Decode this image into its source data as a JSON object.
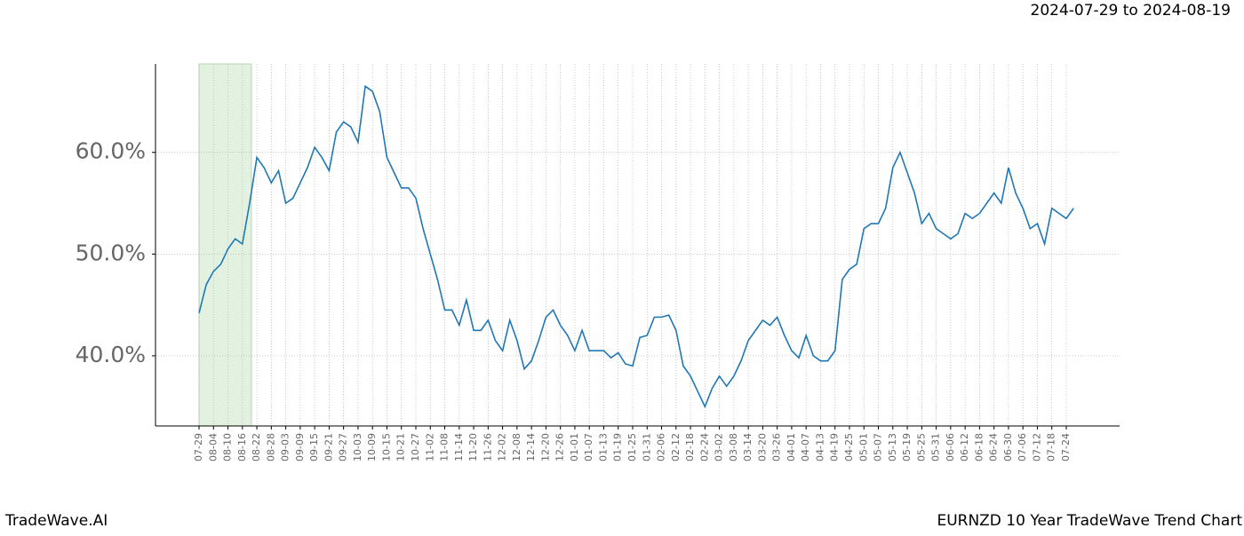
{
  "chart_data": {
    "type": "line",
    "header": "2024-07-29 to 2024-08-19",
    "brand": "TradeWave.AI",
    "title": "EURNZD 10 Year TradeWave Trend Chart",
    "categories": [
      "07-29",
      null,
      "08-04",
      null,
      "08-10",
      null,
      "08-16",
      null,
      "08-22",
      null,
      "08-28",
      null,
      "09-03",
      null,
      "09-09",
      null,
      "09-15",
      null,
      "09-21",
      null,
      "09-27",
      null,
      "10-03",
      null,
      "10-09",
      null,
      "10-15",
      null,
      "10-21",
      null,
      "10-27",
      null,
      "11-02",
      null,
      "11-08",
      null,
      "11-14",
      null,
      "11-20",
      null,
      "11-26",
      null,
      "12-02",
      null,
      "12-08",
      null,
      "12-14",
      null,
      "12-20",
      null,
      "12-26",
      null,
      "01-01",
      null,
      "01-07",
      null,
      "01-13",
      null,
      "01-19",
      null,
      "01-25",
      null,
      "01-31",
      null,
      "02-06",
      null,
      "02-12",
      null,
      "02-18",
      null,
      "02-24",
      null,
      "03-02",
      null,
      "03-08",
      null,
      "03-14",
      null,
      "03-20",
      null,
      "03-26",
      null,
      "04-01",
      null,
      "04-07",
      null,
      "04-13",
      null,
      "04-19",
      null,
      "04-25",
      null,
      "05-01",
      null,
      "05-07",
      null,
      "05-13",
      null,
      "05-19",
      null,
      "05-25",
      null,
      "05-31",
      null,
      "06-06",
      null,
      "06-12",
      null,
      "06-18",
      null,
      "06-24",
      null,
      "06-30",
      null,
      "07-06",
      null,
      "07-12",
      null,
      "07-18",
      null,
      "07-24",
      null
    ],
    "series": [
      {
        "color": "#1f77b4",
        "values": [
          44.2,
          47,
          48.3,
          49,
          50.5,
          51.5,
          51,
          55,
          59.5,
          58.5,
          57,
          58.2,
          55,
          55.5,
          57,
          58.5,
          60.5,
          59.5,
          58.2,
          62,
          63,
          62.5,
          61,
          66.5,
          66,
          64,
          59.5,
          58,
          56.5,
          56.5,
          55.5,
          52.5,
          50,
          47.5,
          44.5,
          44.5,
          43,
          45.5,
          42.5,
          42.5,
          43.5,
          41.5,
          40.5,
          43.5,
          41.5,
          38.7,
          39.5,
          41.5,
          43.8,
          44.5,
          43,
          42,
          40.5,
          42.5,
          40.5,
          40.5,
          40.5,
          39.8,
          40.3,
          39.2,
          39,
          41.8,
          42,
          43.8,
          43.8,
          44,
          42.5,
          39,
          38,
          36.5,
          35,
          36.8,
          38,
          37,
          38,
          39.5,
          41.5,
          42.5,
          43.5,
          43,
          43.8,
          42,
          40.5,
          39.8,
          42,
          40,
          39.5,
          39.5,
          40.5,
          47.5,
          48.5,
          49,
          52.5,
          53,
          53,
          54.5,
          58.5,
          60,
          58,
          56,
          53,
          54,
          52.5,
          52,
          51.5,
          52,
          54,
          53.5,
          54,
          55,
          56,
          55,
          58.5,
          56,
          54.5,
          52.5,
          53,
          51,
          54.5,
          54,
          53.5,
          54.5
        ]
      }
    ],
    "ylim": [
      33.1,
      68.7
    ],
    "yticks": [
      {
        "value": 40,
        "label": "40.0%"
      },
      {
        "value": 50,
        "label": "50.0%"
      },
      {
        "value": 60,
        "label": "60.0%"
      }
    ],
    "grid": true,
    "shade": {
      "from": 0,
      "to": 7,
      "color": "#e3f1e1"
    }
  }
}
